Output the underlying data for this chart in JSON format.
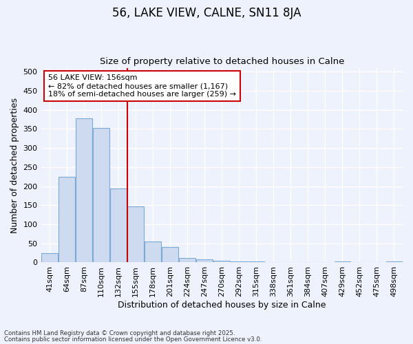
{
  "title": "56, LAKE VIEW, CALNE, SN11 8JA",
  "subtitle": "Size of property relative to detached houses in Calne",
  "xlabel": "Distribution of detached houses by size in Calne",
  "ylabel": "Number of detached properties",
  "bins": [
    "41sqm",
    "64sqm",
    "87sqm",
    "110sqm",
    "132sqm",
    "155sqm",
    "178sqm",
    "201sqm",
    "224sqm",
    "247sqm",
    "270sqm",
    "292sqm",
    "315sqm",
    "338sqm",
    "361sqm",
    "384sqm",
    "407sqm",
    "429sqm",
    "452sqm",
    "475sqm",
    "498sqm"
  ],
  "values": [
    25,
    225,
    378,
    352,
    193,
    147,
    55,
    40,
    11,
    8,
    5,
    3,
    2,
    1,
    1,
    1,
    1,
    2,
    1,
    1,
    2
  ],
  "bar_color": "#cddaf0",
  "bar_edge_color": "#7baad4",
  "vline_color": "#cc0000",
  "vline_bar_index": 5,
  "annotation_line1": "56 LAKE VIEW: 156sqm",
  "annotation_line2": "← 82% of detached houses are smaller (1,167)",
  "annotation_line3": "18% of semi-detached houses are larger (259) →",
  "annotation_box_color": "#ffffff",
  "annotation_box_edge": "#cc0000",
  "ylim_max": 510,
  "yticks": [
    0,
    50,
    100,
    150,
    200,
    250,
    300,
    350,
    400,
    450,
    500
  ],
  "bg_color": "#eef2fc",
  "grid_color": "#ffffff",
  "title_fontsize": 12,
  "subtitle_fontsize": 9.5,
  "ylabel_fontsize": 9,
  "xlabel_fontsize": 9,
  "tick_fontsize": 8,
  "footer_line1": "Contains HM Land Registry data © Crown copyright and database right 2025.",
  "footer_line2": "Contains public sector information licensed under the Open Government Licence v3.0."
}
